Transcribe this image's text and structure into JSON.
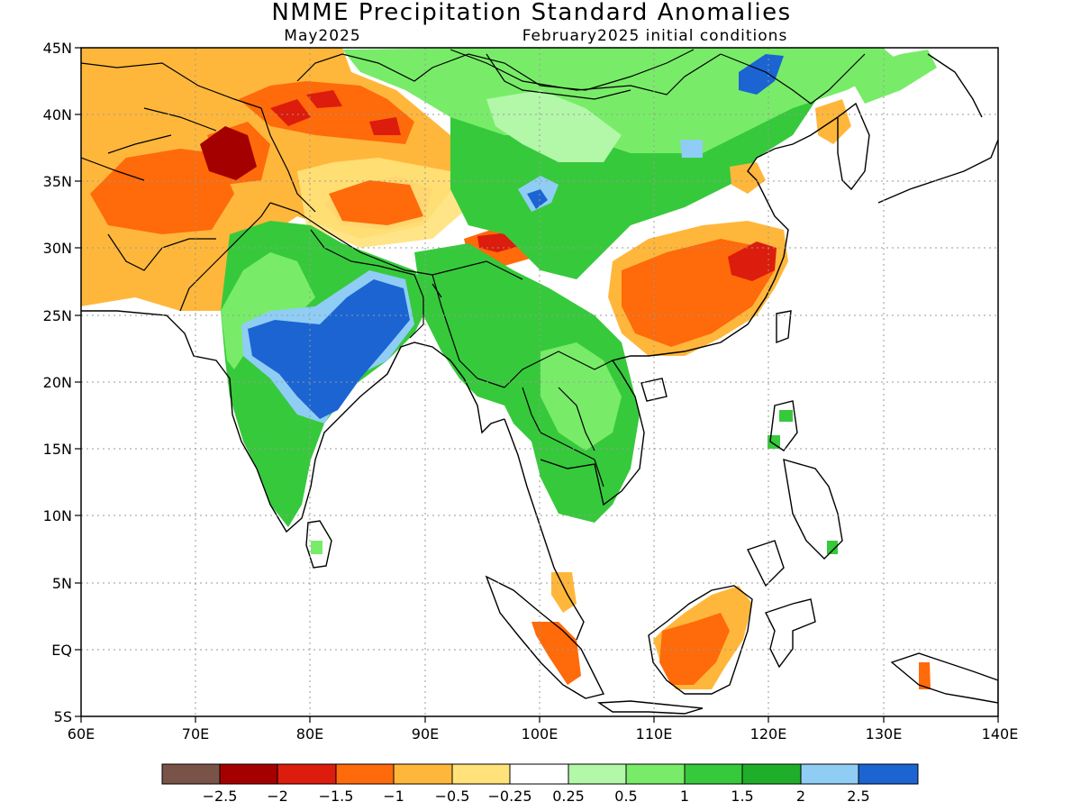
{
  "title": "NMME Precipitation Standard Anomalies",
  "subtitle_left": "May2025",
  "subtitle_right": "February2025 initial conditions",
  "lon_labels": [
    "60E",
    "70E",
    "80E",
    "90E",
    "100E",
    "110E",
    "120E",
    "130E",
    "140E"
  ],
  "lat_labels": [
    "45N",
    "40N",
    "35N",
    "30N",
    "25N",
    "20N",
    "15N",
    "10N",
    "5N",
    "EQ",
    "5S"
  ],
  "legend": {
    "colors": [
      "#7a5348",
      "#a50000",
      "#dc1c0c",
      "#ff6a0a",
      "#ffb73b",
      "#ffe27a",
      "#ffffff",
      "#b3f7a9",
      "#78ec68",
      "#37c93c",
      "#1fae2a",
      "#8fcdf5",
      "#1b64d2"
    ],
    "labels": [
      "−2.5",
      "−2",
      "−1.5",
      "−1",
      "−0.5",
      "−0.25",
      "0.25",
      "0.5",
      "1",
      "1.5",
      "2",
      "2.5"
    ]
  },
  "colors": {
    "frame": "#000000",
    "grid": "#9a9a9a",
    "coast": "#000000"
  }
}
